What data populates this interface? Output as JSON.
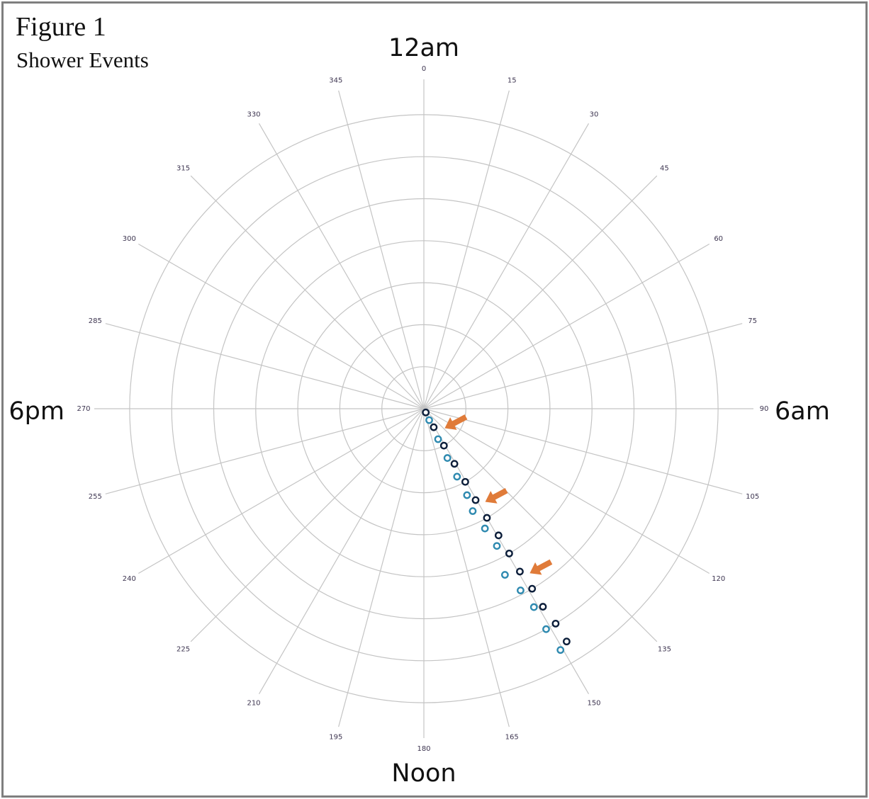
{
  "figure": {
    "title": "Figure 1",
    "subtitle": "Shower Events"
  },
  "chart_data": {
    "type": "scatter",
    "coordinate_system": "polar",
    "angle_ticks": [
      "0",
      "15",
      "30",
      "45",
      "60",
      "75",
      "90",
      "105",
      "120",
      "135",
      "150",
      "165",
      "180",
      "195",
      "210",
      "225",
      "240",
      "255",
      "270",
      "285",
      "300",
      "315",
      "330",
      "345"
    ],
    "angle_range": [
      0,
      360
    ],
    "rings": 7,
    "grid": true,
    "legend": "none",
    "cardinal_labels": {
      "top": "12am",
      "right": "6am",
      "bottom": "Noon",
      "left": "6pm"
    },
    "colors": {
      "dark": "#0c1e3a",
      "light": "#2f8ab0",
      "arrow": "#e07b39",
      "grid": "#c4c4c4"
    },
    "series": [
      {
        "style": "dark",
        "points": [
          {
            "angle": 153.0,
            "r": 0.1
          },
          {
            "angle": 152.0,
            "r": 0.5
          },
          {
            "angle": 151.5,
            "r": 1.0
          },
          {
            "angle": 151.0,
            "r": 1.5
          },
          {
            "angle": 150.5,
            "r": 2.0
          },
          {
            "angle": 150.5,
            "r": 2.5
          },
          {
            "angle": 150.0,
            "r": 3.0
          },
          {
            "angle": 149.5,
            "r": 3.5
          },
          {
            "angle": 149.5,
            "r": 4.0
          },
          {
            "angle": 149.5,
            "r": 4.5
          },
          {
            "angle": 149.0,
            "r": 5.0
          },
          {
            "angle": 149.0,
            "r": 5.5
          },
          {
            "angle": 148.5,
            "r": 6.0
          },
          {
            "angle": 148.5,
            "r": 6.5
          }
        ]
      },
      {
        "style": "light",
        "points": [
          {
            "angle": 155.0,
            "r": 0.3
          },
          {
            "angle": 155.0,
            "r": 0.8
          },
          {
            "angle": 154.5,
            "r": 1.3
          },
          {
            "angle": 154.0,
            "r": 1.8
          },
          {
            "angle": 153.5,
            "r": 2.3
          },
          {
            "angle": 154.5,
            "r": 2.7
          },
          {
            "angle": 153.0,
            "r": 3.2
          },
          {
            "angle": 152.0,
            "r": 3.7
          },
          {
            "angle": 154.0,
            "r": 4.4
          },
          {
            "angle": 152.0,
            "r": 4.9
          },
          {
            "angle": 151.0,
            "r": 5.4
          },
          {
            "angle": 151.0,
            "r": 6.0
          },
          {
            "angle": 150.5,
            "r": 6.6
          }
        ]
      }
    ],
    "annotations": [
      {
        "type": "arrow",
        "angle": 152.5,
        "r": 0.6
      },
      {
        "type": "arrow",
        "angle": 151.5,
        "r": 2.6
      },
      {
        "type": "arrow",
        "angle": 150.0,
        "r": 4.6
      }
    ]
  }
}
